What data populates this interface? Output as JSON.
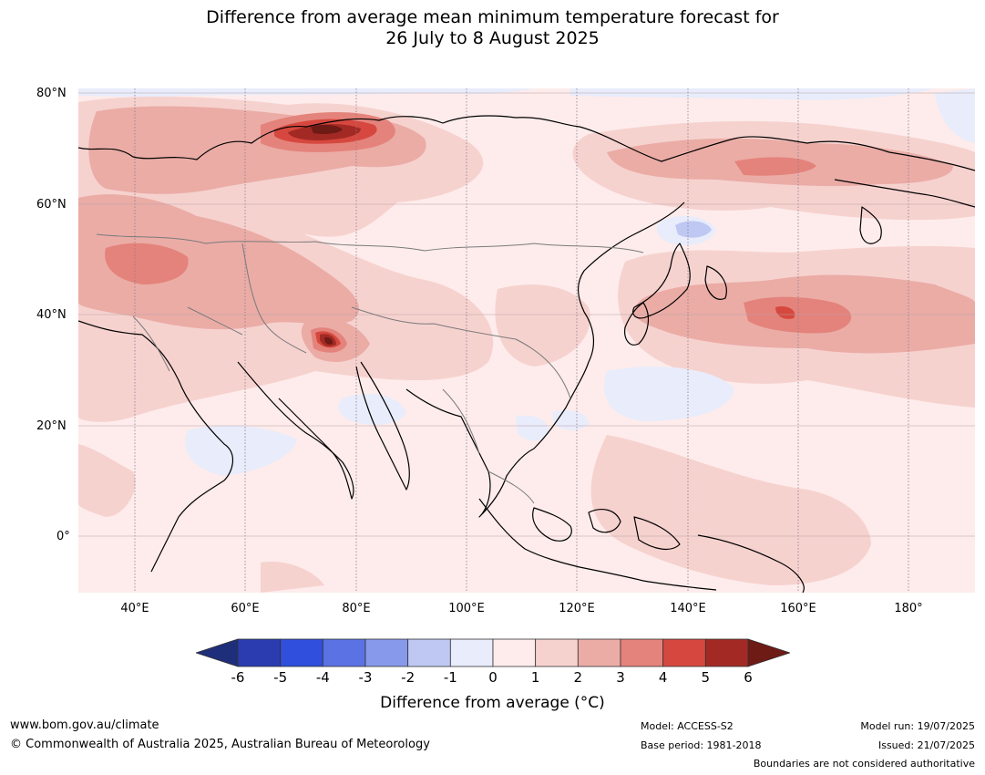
{
  "title": {
    "line1": "Difference from average mean minimum temperature forecast for",
    "line2": "26 July to 8 August 2025"
  },
  "map": {
    "lat_labels": [
      "80°N",
      "60°N",
      "40°N",
      "20°N",
      "0°"
    ],
    "lon_labels": [
      "40°E",
      "60°E",
      "80°E",
      "100°E",
      "120°E",
      "140°E",
      "160°E",
      "180°"
    ],
    "colors": {
      "ocean_base": "#fdeceb",
      "light_warm": "#f6d2cf",
      "mid_warm": "#ebaca6",
      "warm": "#e4837b",
      "hot": "#d6483f",
      "hottest": "#a32a24",
      "extreme": "#6e1a15",
      "cool_faint": "#e8ecfb",
      "cool": "#bec8f3"
    }
  },
  "colorbar": {
    "ticks": [
      "-6",
      "-5",
      "-4",
      "-3",
      "-2",
      "-1",
      "0",
      "1",
      "2",
      "3",
      "4",
      "5",
      "6"
    ],
    "colors": [
      "#1f2e7a",
      "#2a3cb0",
      "#2f4fdc",
      "#5b72e4",
      "#8799ea",
      "#bec8f3",
      "#e8ecfb",
      "#fdeceb",
      "#f6d2cf",
      "#ebaca6",
      "#e4837b",
      "#d6483f",
      "#a32a24",
      "#6e1a15"
    ],
    "label": "Difference from average (°C)"
  },
  "footer": {
    "website": "www.bom.gov.au/climate",
    "copyright": "© Commonwealth of Australia 2025, Australian Bureau of Meteorology",
    "model": "Model: ACCESS-S2",
    "base_period": "Base period: 1981-2018",
    "model_run": "Model run: 19/07/2025",
    "issued": "Issued: 21/07/2025",
    "boundaries_note": "Boundaries are not considered authoritative"
  }
}
